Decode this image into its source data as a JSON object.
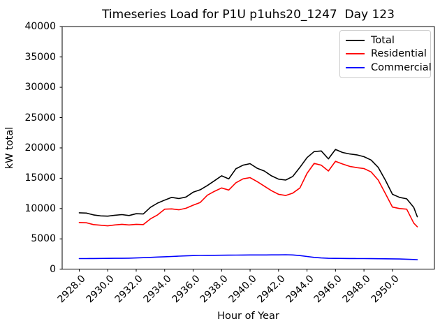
{
  "title": "Timeseries Load for P1U p1uhs20_1247  Day 123",
  "xlabel": "Hour of Year",
  "ylabel": "kW total",
  "legend": {
    "entries": [
      {
        "label": "Total",
        "color": "#000000"
      },
      {
        "label": "Residential",
        "color": "#ff0000"
      },
      {
        "label": "Commercial",
        "color": "#0000ff"
      }
    ]
  },
  "colors": {
    "total": "#000000",
    "residential": "#ff0000",
    "commercial": "#0000ff",
    "spine": "#000000"
  },
  "chart_data": {
    "type": "line",
    "title": "Timeseries Load for P1U p1uhs20_1247  Day 123",
    "xlabel": "Hour of Year",
    "ylabel": "kW total",
    "xlim": [
      2926.8,
      2952.95
    ],
    "ylim": [
      0,
      40000
    ],
    "grid": false,
    "legend_position": "upper right",
    "xtick_labels": [
      "2928.0",
      "2930.0",
      "2932.0",
      "2934.0",
      "2936.0",
      "2938.0",
      "2940.0",
      "2942.0",
      "2944.0",
      "2946.0",
      "2948.0",
      "2950.0"
    ],
    "yticks": [
      0,
      5000,
      10000,
      15000,
      20000,
      25000,
      30000,
      35000,
      40000
    ],
    "x": [
      2928.0,
      2928.5,
      2929.0,
      2929.5,
      2930.0,
      2930.5,
      2931.0,
      2931.5,
      2932.0,
      2932.5,
      2933.0,
      2933.5,
      2934.0,
      2934.5,
      2935.0,
      2935.5,
      2936.0,
      2936.5,
      2937.0,
      2937.5,
      2938.0,
      2938.5,
      2939.0,
      2939.5,
      2940.0,
      2940.5,
      2941.0,
      2941.5,
      2942.0,
      2942.5,
      2943.0,
      2943.5,
      2944.0,
      2944.5,
      2945.0,
      2945.5,
      2946.0,
      2946.5,
      2947.0,
      2947.5,
      2948.0,
      2948.5,
      2949.0,
      2949.5,
      2950.0,
      2950.5,
      2951.0,
      2951.5,
      2951.75
    ],
    "series": [
      {
        "name": "Total",
        "color": "#000000",
        "values": [
          9300,
          9250,
          8950,
          8800,
          8750,
          8900,
          9000,
          8850,
          9150,
          9100,
          10200,
          10900,
          11400,
          11850,
          11650,
          11900,
          12700,
          13100,
          13800,
          14600,
          15400,
          14900,
          16550,
          17150,
          17400,
          16650,
          16200,
          15400,
          14850,
          14700,
          15300,
          16800,
          18400,
          19400,
          19500,
          18200,
          19750,
          19250,
          19000,
          18850,
          18550,
          18000,
          16800,
          14700,
          12350,
          11850,
          11600,
          10200,
          8650
        ]
      },
      {
        "name": "Residential",
        "color": "#ff0000",
        "values": [
          7700,
          7650,
          7350,
          7250,
          7150,
          7300,
          7400,
          7300,
          7400,
          7350,
          8300,
          8950,
          9900,
          9950,
          9800,
          10050,
          10550,
          11000,
          12200,
          12850,
          13400,
          13050,
          14250,
          14900,
          15100,
          14450,
          13700,
          12950,
          12350,
          12150,
          12550,
          13400,
          15800,
          17450,
          17150,
          16200,
          17800,
          17350,
          16950,
          16750,
          16600,
          16050,
          14700,
          12500,
          10250,
          10000,
          9900,
          7600,
          7000
        ]
      },
      {
        "name": "Commercial",
        "color": "#0000ff",
        "values": [
          1750,
          1750,
          1760,
          1770,
          1780,
          1790,
          1800,
          1820,
          1850,
          1900,
          1950,
          2000,
          2050,
          2100,
          2150,
          2200,
          2250,
          2270,
          2280,
          2290,
          2300,
          2310,
          2320,
          2340,
          2350,
          2350,
          2350,
          2360,
          2360,
          2380,
          2350,
          2250,
          2100,
          1950,
          1850,
          1800,
          1780,
          1770,
          1760,
          1750,
          1750,
          1740,
          1730,
          1710,
          1700,
          1680,
          1650,
          1600,
          1550
        ]
      }
    ]
  }
}
